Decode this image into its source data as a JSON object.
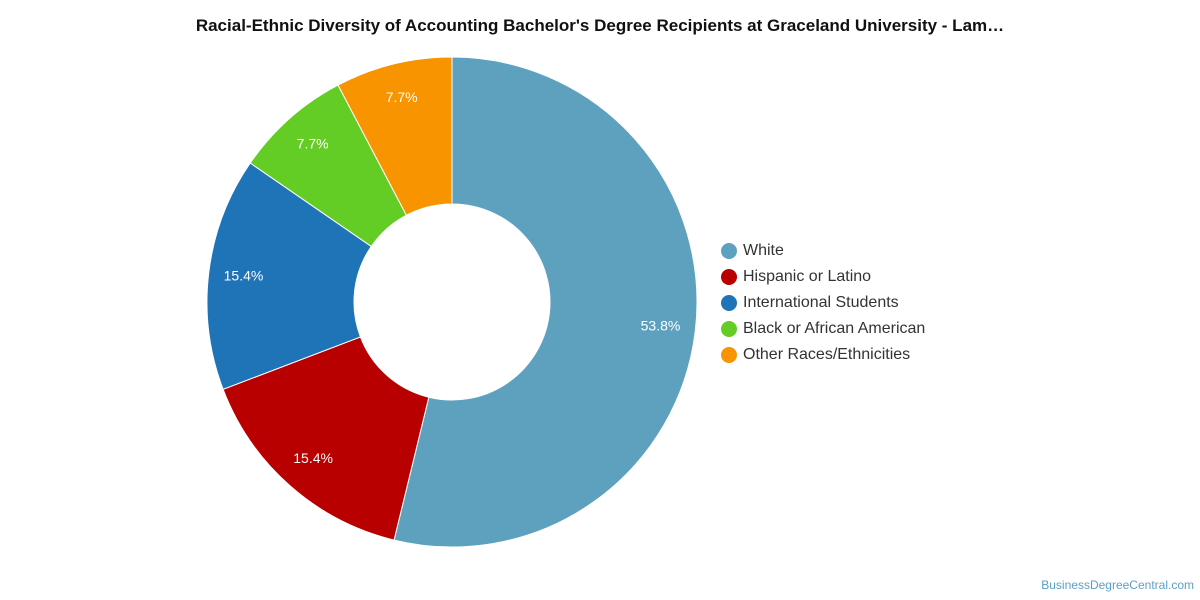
{
  "chart_data": {
    "type": "pie",
    "title": "Racial-Ethnic Diversity of Accounting Bachelor's Degree Recipients at Graceland University - Lam…",
    "categories": [
      "White",
      "Hispanic or Latino",
      "International Students",
      "Black or African American",
      "Other Races/Ethnicities"
    ],
    "values": [
      53.8,
      15.4,
      15.4,
      7.7,
      7.7
    ],
    "labels": [
      "53.8%",
      "15.4%",
      "15.4%",
      "7.7%",
      "7.7%"
    ],
    "colors": [
      "#5ea1bf",
      "#b80000",
      "#1f73b7",
      "#63cd25",
      "#f79400"
    ],
    "donut": true,
    "legend_position": "right"
  },
  "watermark": "BusinessDegreeCentral.com"
}
